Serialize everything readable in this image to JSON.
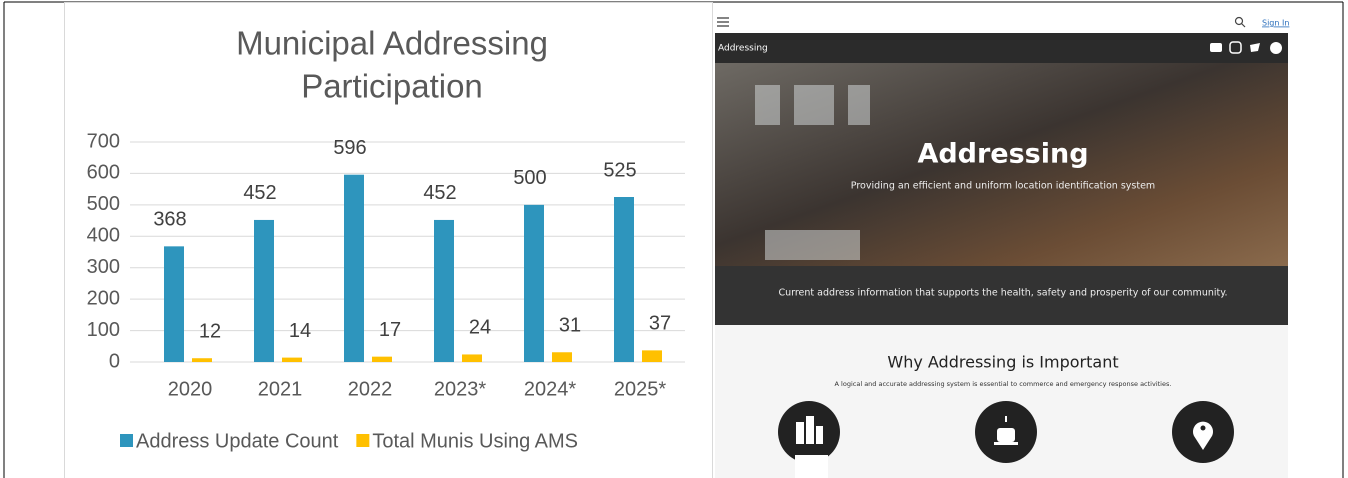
{
  "chart_data": {
    "type": "bar",
    "title": "Municipal Addressing Participation",
    "categories": [
      "2020",
      "2021",
      "2022",
      "2023*",
      "2024*",
      "2025*"
    ],
    "series": [
      {
        "name": "Address Update Count",
        "color": "#2e95bd",
        "values": [
          368,
          452,
          596,
          452,
          500,
          525
        ]
      },
      {
        "name": "Total Munis Using AMS",
        "color": "#ffc000",
        "values": [
          12,
          14,
          17,
          24,
          31,
          37
        ]
      }
    ],
    "ylim": [
      0,
      700
    ],
    "yticks": [
      0,
      100,
      200,
      300,
      400,
      500,
      600,
      700
    ],
    "grid": true,
    "legend": "bottom"
  },
  "website": {
    "nav": {
      "sign_in": "Sign In"
    },
    "header": {
      "site_title": "Addressing"
    },
    "hero": {
      "title": "Addressing",
      "subtitle": "Providing an efficient and uniform location identification system"
    },
    "banner": {
      "text": "Current address information that supports the health, safety and prosperity of our community."
    },
    "section": {
      "title": "Why Addressing is Important",
      "subtitle": "A logical and accurate addressing system is essential to commerce and emergency response activities."
    }
  }
}
